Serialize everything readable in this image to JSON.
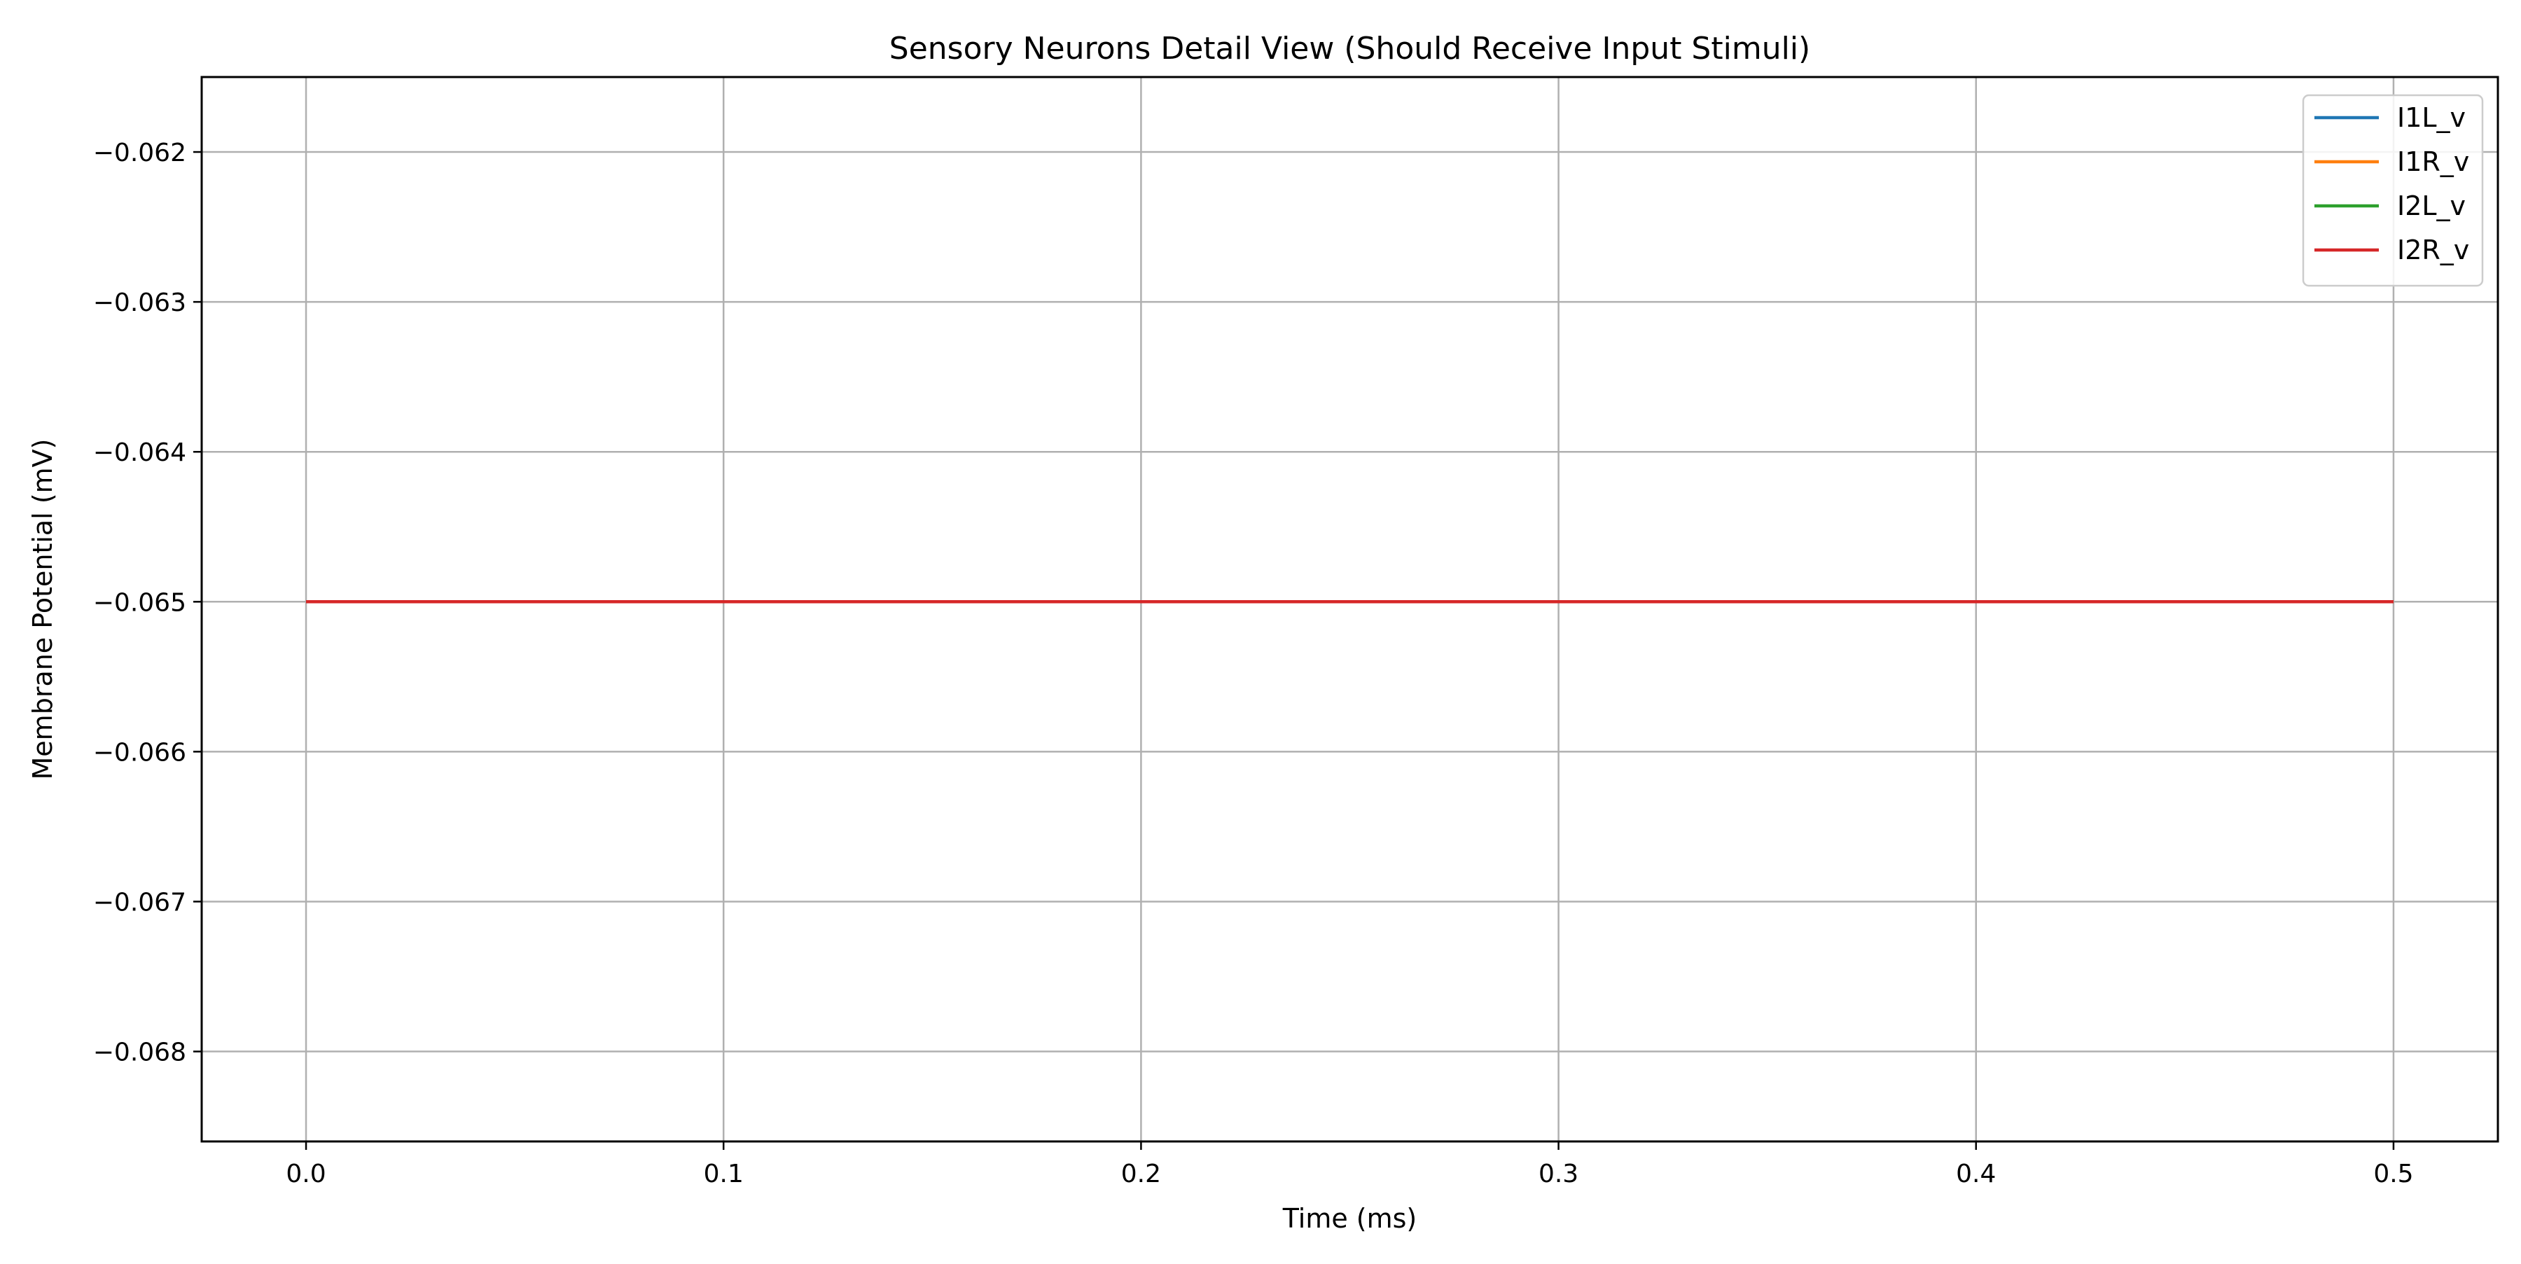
{
  "chart_data": {
    "type": "line",
    "title": "Sensory Neurons Detail View (Should Receive Input Stimuli)",
    "xlabel": "Time (ms)",
    "ylabel": "Membrane Potential (mV)",
    "xlim": [
      -0.025,
      0.525
    ],
    "ylim": [
      -0.0686,
      -0.0615
    ],
    "xticks": [
      {
        "value": 0.0,
        "label": "0.0"
      },
      {
        "value": 0.1,
        "label": "0.1"
      },
      {
        "value": 0.2,
        "label": "0.2"
      },
      {
        "value": 0.3,
        "label": "0.3"
      },
      {
        "value": 0.4,
        "label": "0.4"
      },
      {
        "value": 0.5,
        "label": "0.5"
      }
    ],
    "yticks": [
      {
        "value": -0.062,
        "label": "−0.062"
      },
      {
        "value": -0.063,
        "label": "−0.063"
      },
      {
        "value": -0.064,
        "label": "−0.064"
      },
      {
        "value": -0.065,
        "label": "−0.065"
      },
      {
        "value": -0.066,
        "label": "−0.066"
      },
      {
        "value": -0.067,
        "label": "−0.067"
      },
      {
        "value": -0.068,
        "label": "−0.068"
      }
    ],
    "grid": true,
    "legend_position": "top-right",
    "series": [
      {
        "name": "I1L_v",
        "color": "#1f77b4",
        "x": [
          0.0,
          0.5
        ],
        "y": [
          -0.065,
          -0.065
        ]
      },
      {
        "name": "I1R_v",
        "color": "#ff7f0e",
        "x": [
          0.0,
          0.5
        ],
        "y": [
          -0.065,
          -0.065
        ]
      },
      {
        "name": "I2L_v",
        "color": "#2ca02c",
        "x": [
          0.0,
          0.5
        ],
        "y": [
          -0.065,
          -0.065
        ]
      },
      {
        "name": "I2R_v",
        "color": "#d62728",
        "x": [
          0.0,
          0.5
        ],
        "y": [
          -0.065,
          -0.065
        ]
      }
    ]
  }
}
